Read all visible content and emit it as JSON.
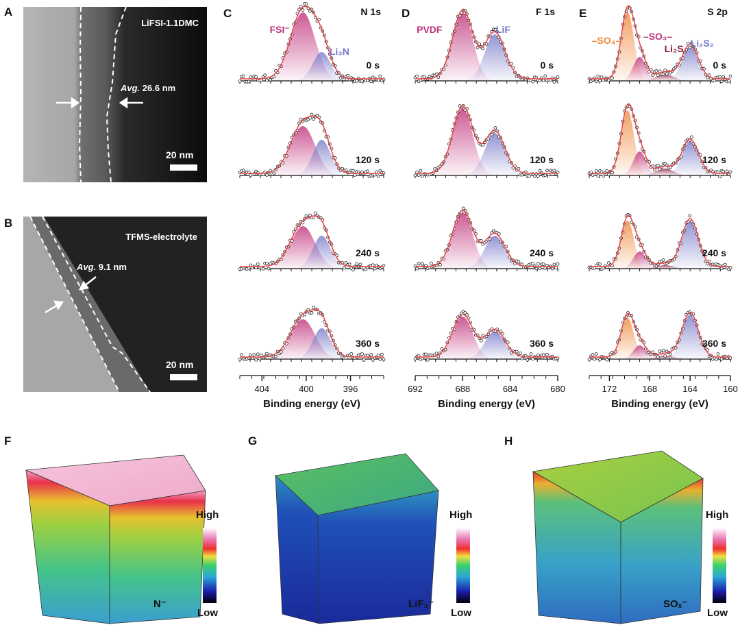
{
  "panels": {
    "A": {
      "letter": "A",
      "label": "LiFSI-1.1DMC",
      "avg_prefix": "Avg.",
      "avg_value": "26.6 nm",
      "scale": "20 nm"
    },
    "B": {
      "letter": "B",
      "label": "TFMS-electrolyte",
      "avg_prefix": "Avg.",
      "avg_value": "9.1 nm",
      "scale": "20 nm"
    },
    "F": {
      "letter": "F",
      "species": "N⁻",
      "high": "High",
      "low": "Low"
    },
    "G": {
      "letter": "G",
      "species": "LiF₂⁻",
      "high": "High",
      "low": "Low"
    },
    "H": {
      "letter": "H",
      "species": "SOₓ⁻",
      "high": "High",
      "low": "Low"
    }
  },
  "colors": {
    "fit": "#e8474c",
    "pink": "#c0307a",
    "blue": "#7779c9",
    "orange": "#f0883a",
    "maroon": "#8c1e43"
  },
  "chart_data": [
    {
      "type": "line",
      "panel": "C",
      "title": "N 1s",
      "xlabel": "Binding energy (eV)",
      "xlim": [
        406,
        393
      ],
      "xticks": [
        404,
        400,
        396
      ],
      "time_labels": [
        "0 s",
        "120 s",
        "240 s",
        "360 s"
      ],
      "peak_labels": [
        "FSI⁻",
        "Li₃N"
      ],
      "components": [
        {
          "name": "FSI⁻",
          "center": 400.3,
          "fwhm": 2.6,
          "color": "pink"
        },
        {
          "name": "Li₃N",
          "center": 398.6,
          "fwhm": 1.9,
          "color": "blue"
        }
      ],
      "amplitudes": [
        [
          1.0,
          0.42
        ],
        [
          0.72,
          0.52
        ],
        [
          0.62,
          0.48
        ],
        [
          0.58,
          0.45
        ]
      ]
    },
    {
      "type": "line",
      "panel": "D",
      "title": "F 1s",
      "xlabel": "Binding energy (eV)",
      "xlim": [
        692,
        680
      ],
      "xticks": [
        692,
        688,
        684,
        680
      ],
      "time_labels": [
        "0 s",
        "120 s",
        "240 s",
        "360 s"
      ],
      "peak_labels": [
        "PVDF",
        "LiF"
      ],
      "components": [
        {
          "name": "PVDF",
          "center": 688.0,
          "fwhm": 2.0,
          "color": "pink"
        },
        {
          "name": "LiF",
          "center": 685.3,
          "fwhm": 2.0,
          "color": "blue"
        }
      ],
      "amplitudes": [
        [
          1.0,
          0.68
        ],
        [
          0.98,
          0.62
        ],
        [
          0.82,
          0.48
        ],
        [
          0.62,
          0.4
        ]
      ]
    },
    {
      "type": "line",
      "panel": "E",
      "title": "S 2p",
      "xlabel": "Binding energy (eV)",
      "xlim": [
        174,
        160
      ],
      "xticks": [
        172,
        168,
        164,
        160
      ],
      "time_labels": [
        "0 s",
        "120 s",
        "240 s",
        "360 s"
      ],
      "peak_labels": [
        "–SO₄–",
        "–SO₃–",
        "Li₂S",
        "Li₂S₂"
      ],
      "components": [
        {
          "name": "–SO₄–",
          "center": 170.2,
          "fwhm": 1.5,
          "color": "orange"
        },
        {
          "name": "–SO₃–",
          "center": 169.0,
          "fwhm": 1.5,
          "color": "pink"
        },
        {
          "name": "Li₂S",
          "center": 166.5,
          "fwhm": 2.0,
          "color": "maroon"
        },
        {
          "name": "Li₂S₂",
          "center": 164.0,
          "fwhm": 1.9,
          "color": "blue"
        }
      ],
      "amplitudes": [
        [
          1.0,
          0.35,
          0.1,
          0.5
        ],
        [
          0.95,
          0.35,
          0.1,
          0.5
        ],
        [
          0.7,
          0.25,
          0.05,
          0.7
        ],
        [
          0.6,
          0.2,
          0.05,
          0.65
        ]
      ]
    }
  ]
}
